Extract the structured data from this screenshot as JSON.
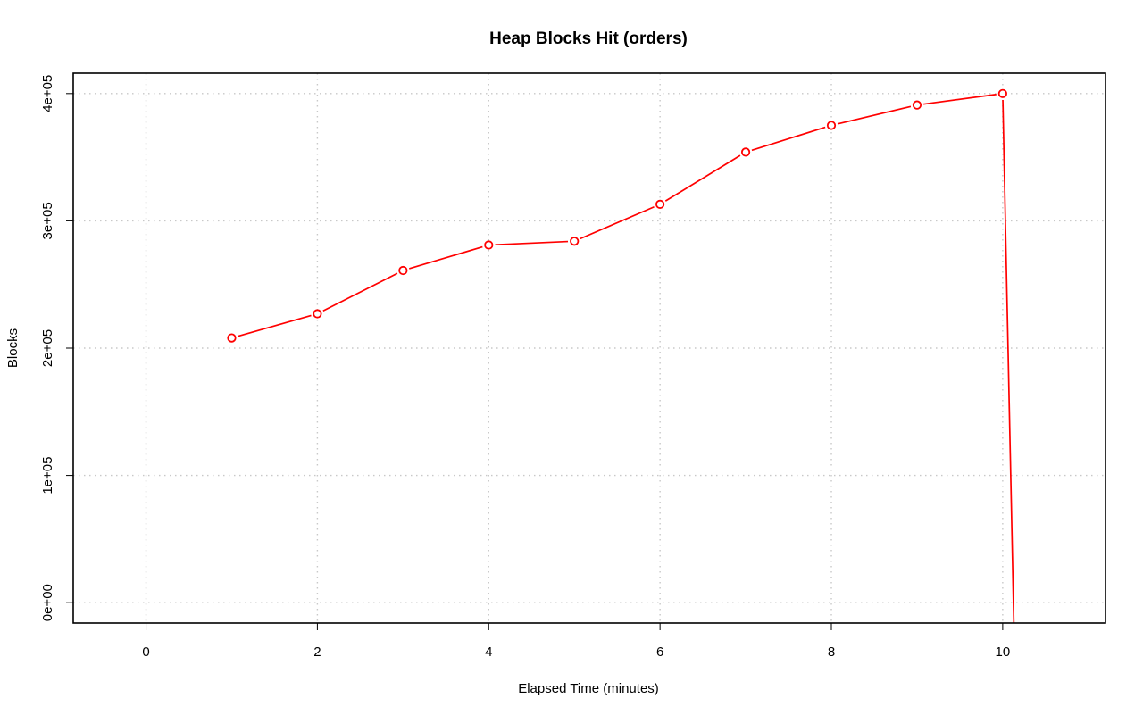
{
  "chart_data": {
    "type": "line",
    "title": "Heap Blocks Hit (orders)",
    "xlabel": "Elapsed Time (minutes)",
    "ylabel": "Blocks",
    "xlim": [
      -0.85,
      11.2
    ],
    "ylim": [
      -16000,
      416000
    ],
    "x_ticks": [
      0,
      2,
      4,
      6,
      8,
      10
    ],
    "x_tick_labels": [
      "0",
      "2",
      "4",
      "6",
      "8",
      "10"
    ],
    "y_ticks": [
      0,
      100000,
      200000,
      300000,
      400000
    ],
    "y_tick_labels": [
      "0e+00",
      "1e+05",
      "2e+05",
      "3e+05",
      "4e+05"
    ],
    "grid": true,
    "series": [
      {
        "color": "#ff0000",
        "x": [
          1,
          2,
          3,
          4,
          5,
          6,
          7,
          8,
          9,
          10,
          10.13
        ],
        "y": [
          208000,
          227000,
          261000,
          281000,
          284000,
          313000,
          354000,
          375000,
          391000,
          400000,
          -16000
        ],
        "marker_count": 10
      }
    ]
  }
}
